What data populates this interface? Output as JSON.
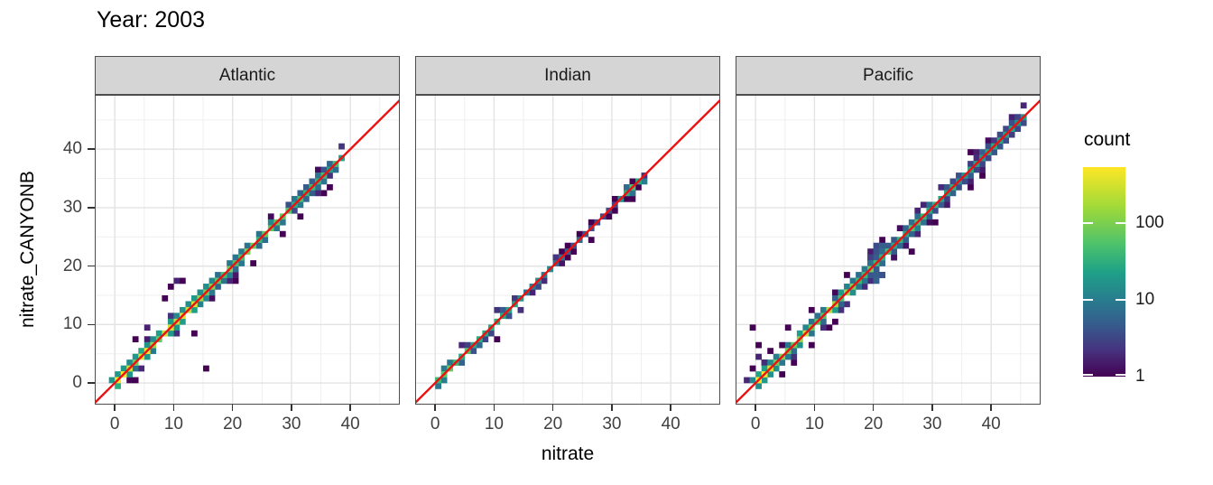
{
  "title": "Year: 2003",
  "chart_data": {
    "type": "heatmap",
    "subtype": "bin2d-density-scatter",
    "title": "Year: 2003",
    "xlabel": "nitrate",
    "ylabel": "nitrate_CANYONB",
    "x_ticks": [
      0,
      10,
      20,
      30,
      40
    ],
    "y_ticks": [
      0,
      10,
      20,
      30,
      40
    ],
    "minor_grid": [
      5,
      15,
      25,
      35,
      45
    ],
    "x_range": [
      -3.4,
      48.4
    ],
    "y_range": [
      -3.7,
      49.3
    ],
    "grid": true,
    "bin_width": 1,
    "reference_line": "y = x",
    "reference_line_color": "#ec1010",
    "colors": {
      "background": "#ffffff",
      "panel_border": "#4d4d4d",
      "grid_major": "#e3e3e3",
      "grid_minor": "#efefef",
      "strip_fill": "#d5d5d5",
      "tick_label": "#404040",
      "viridis_stops": [
        [
          68,
          1,
          84
        ],
        [
          72,
          40,
          120
        ],
        [
          62,
          74,
          137
        ],
        [
          49,
          104,
          142
        ],
        [
          38,
          130,
          142
        ],
        [
          31,
          158,
          137
        ],
        [
          53,
          183,
          121
        ],
        [
          109,
          205,
          89
        ],
        [
          253,
          231,
          37
        ]
      ]
    },
    "legend": {
      "title": "count",
      "scale": "log10",
      "tick_values": [
        100,
        10,
        1
      ],
      "tick_labels": [
        "100",
        "10",
        "1"
      ],
      "max_count": 535
    },
    "facets": [
      {
        "label": "Atlantic",
        "seed": 42,
        "diag_start": 0,
        "diag_end": 39,
        "cmax": 460,
        "tau": 20,
        "p1": 0.8,
        "p2": 0.33,
        "p3": 0.11,
        "outliers": [
          [
            15,
            2,
            1
          ],
          [
            9,
            16,
            1
          ],
          [
            10,
            17,
            2
          ],
          [
            11,
            17,
            1
          ],
          [
            5,
            9,
            2
          ],
          [
            3,
            7,
            1
          ],
          [
            13,
            8,
            1
          ],
          [
            20,
            17,
            1
          ],
          [
            23,
            20,
            1
          ],
          [
            28,
            25,
            1
          ],
          [
            31,
            28,
            1
          ],
          [
            35,
            32,
            1
          ],
          [
            8,
            14,
            1
          ]
        ]
      },
      {
        "label": "Indian",
        "seed": 7,
        "diag_start": 0,
        "diag_end": 36,
        "cmax": 190,
        "tau": 7.5,
        "p1": 0.5,
        "p2": 0.12,
        "p3": 0.03,
        "outliers": [
          [
            10,
            7,
            1
          ],
          [
            20,
            21,
            3
          ],
          [
            21,
            21,
            2
          ],
          [
            12,
            11,
            2
          ],
          [
            26,
            24,
            1
          ],
          [
            33,
            31,
            1
          ],
          [
            4,
            4,
            8
          ],
          [
            16,
            15,
            2
          ]
        ],
        "hotspots": [
          [
            31,
            31,
            35
          ],
          [
            32,
            32,
            90
          ],
          [
            33,
            33,
            150
          ],
          [
            34,
            34,
            70
          ],
          [
            35,
            34,
            20
          ],
          [
            32,
            33,
            12
          ],
          [
            33,
            32,
            15
          ],
          [
            0,
            0,
            120
          ],
          [
            1,
            1,
            45
          ]
        ]
      },
      {
        "label": "Pacific",
        "seed": 13,
        "diag_start": 0,
        "diag_end": 46,
        "cmax": 430,
        "tau": 17,
        "p1": 0.85,
        "p2": 0.38,
        "p3": 0.13,
        "outliers": [
          [
            -1,
            9,
            1
          ],
          [
            0,
            4,
            2
          ],
          [
            1,
            3,
            2
          ],
          [
            2,
            5,
            1
          ],
          [
            4,
            6,
            1
          ],
          [
            5,
            9,
            1
          ],
          [
            0,
            6,
            1
          ],
          [
            27,
            25,
            2
          ],
          [
            26,
            22,
            1
          ],
          [
            23,
            21,
            1
          ],
          [
            21,
            24,
            1
          ],
          [
            30,
            27,
            1
          ],
          [
            36,
            33,
            1
          ],
          [
            44,
            45,
            2
          ],
          [
            40,
            41,
            3
          ],
          [
            9,
            12,
            1
          ],
          [
            12,
            9,
            1
          ]
        ],
        "cluster": {
          "x0": 19,
          "x1": 21,
          "y0": 17,
          "y1": 23,
          "p": 0.6,
          "cmax": 8
        },
        "hotspots": [
          [
            0,
            0,
            300
          ],
          [
            1,
            1,
            90
          ]
        ]
      }
    ]
  }
}
